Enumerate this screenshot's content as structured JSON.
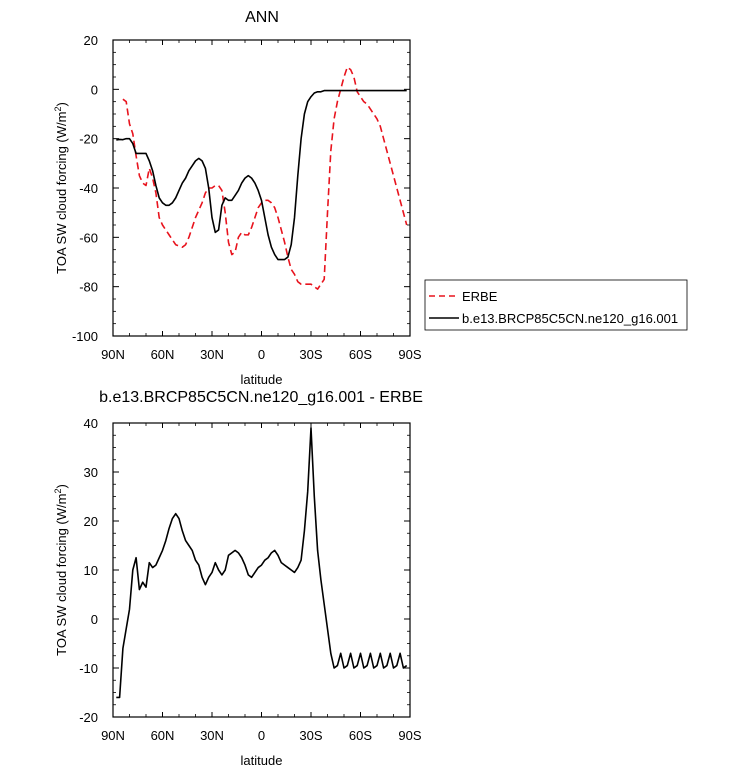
{
  "figure": {
    "background": "#ffffff"
  },
  "chart_data": [
    {
      "type": "line",
      "title": "ANN",
      "xlabel": "latitude",
      "ylabel": "TOA SW cloud forcing (W/m²)",
      "ylabel_base": "TOA SW cloud forcing (W/m",
      "ylabel_sup": "2",
      "ylabel_close": ")",
      "xlim": [
        90,
        -90
      ],
      "ylim": [
        -100,
        20
      ],
      "xticks": [
        {
          "value": 90,
          "label": "90N"
        },
        {
          "value": 60,
          "label": "60N"
        },
        {
          "value": 30,
          "label": "30N"
        },
        {
          "value": 0,
          "label": "0"
        },
        {
          "value": -30,
          "label": "30S"
        },
        {
          "value": -60,
          "label": "60S"
        },
        {
          "value": -90,
          "label": "90S"
        }
      ],
      "yticks": [
        -100,
        -80,
        -60,
        -40,
        -20,
        0,
        20
      ],
      "grid": false,
      "legend": "right",
      "series": [
        {
          "name": "ERBE",
          "color": "#e8131d",
          "dash": "dashed",
          "x": [
            84,
            82,
            80,
            78,
            76,
            74,
            72,
            70,
            68,
            66,
            64,
            62,
            60,
            58,
            56,
            54,
            52,
            50,
            48,
            46,
            44,
            42,
            40,
            38,
            36,
            34,
            32,
            30,
            28,
            26,
            24,
            22,
            20,
            18,
            16,
            14,
            12,
            10,
            8,
            6,
            4,
            2,
            0,
            -2,
            -4,
            -6,
            -8,
            -10,
            -12,
            -14,
            -16,
            -18,
            -20,
            -22,
            -24,
            -26,
            -28,
            -30,
            -32,
            -34,
            -36,
            -38,
            -40,
            -42,
            -44,
            -46,
            -48,
            -50,
            -52,
            -54,
            -56,
            -58,
            -60,
            -62,
            -64,
            -66,
            -68,
            -70,
            -72,
            -74,
            -76,
            -78,
            -80,
            -82,
            -84,
            -86,
            -88
          ],
          "y": [
            -4,
            -5,
            -14,
            -18,
            -27,
            -35,
            -38,
            -39,
            -32,
            -36,
            -42,
            -52,
            -55,
            -57,
            -59,
            -61,
            -63,
            -63.5,
            -64,
            -63,
            -60,
            -56,
            -52,
            -49,
            -46,
            -42,
            -40,
            -40,
            -39,
            -39,
            -41,
            -50,
            -62,
            -67,
            -66,
            -60,
            -58,
            -59,
            -59,
            -56,
            -52,
            -48,
            -46,
            -45,
            -45,
            -46,
            -48,
            -52,
            -57,
            -62,
            -68,
            -73,
            -75,
            -78,
            -79,
            -79,
            -79,
            -79,
            -80,
            -81,
            -79,
            -77,
            -50,
            -25,
            -12,
            -5,
            0,
            5,
            9,
            8,
            5,
            -1,
            -3,
            -5,
            -6,
            -8,
            -10,
            -12,
            -15,
            -20,
            -25,
            -30,
            -35,
            -40,
            -45,
            -50,
            -55
          ]
        },
        {
          "name": "b.e13.BRCP85C5CN.ne120_g16.001",
          "color": "#000000",
          "dash": "solid",
          "x": [
            88,
            86,
            84,
            82,
            80,
            78,
            76,
            74,
            72,
            70,
            68,
            66,
            64,
            62,
            60,
            58,
            56,
            54,
            52,
            50,
            48,
            46,
            44,
            42,
            40,
            38,
            36,
            34,
            32,
            30,
            28,
            26,
            24,
            22,
            20,
            18,
            16,
            14,
            12,
            10,
            8,
            6,
            4,
            2,
            0,
            -2,
            -4,
            -6,
            -8,
            -10,
            -12,
            -14,
            -16,
            -18,
            -20,
            -22,
            -24,
            -26,
            -28,
            -30,
            -32,
            -34,
            -36,
            -38,
            -40,
            -42,
            -44,
            -46,
            -48,
            -50,
            -52,
            -54,
            -56,
            -58,
            -60,
            -62,
            -64,
            -66,
            -68,
            -70,
            -72,
            -74,
            -76,
            -78,
            -80,
            -82,
            -84,
            -86,
            -88
          ],
          "y": [
            -20.5,
            -20.3,
            -20.4,
            -20,
            -20,
            -22,
            -26,
            -26,
            -26,
            -26,
            -29,
            -33,
            -39,
            -44,
            -46,
            -47,
            -47,
            -46,
            -44,
            -41,
            -38,
            -36,
            -33,
            -31,
            -29,
            -28,
            -29,
            -32,
            -40,
            -52,
            -58,
            -57,
            -47,
            -44,
            -45,
            -45,
            -43,
            -41,
            -38,
            -36,
            -35,
            -36,
            -38,
            -41,
            -45,
            -52,
            -59,
            -64,
            -67,
            -69,
            -69,
            -69,
            -68,
            -63,
            -52,
            -35,
            -20,
            -10,
            -5,
            -3,
            -1.5,
            -1,
            -1,
            -0.5,
            -0.5,
            -0.5,
            -0.5,
            -0.5,
            -0.5,
            -0.5,
            -0.5,
            -0.5,
            -0.5,
            -0.5,
            -0.5,
            -0.5,
            -0.5,
            -0.5,
            -0.5,
            -0.5,
            -0.5,
            -0.5,
            -0.5,
            -0.5,
            -0.5,
            -0.5,
            -0.5,
            -0.5,
            -0.5
          ]
        }
      ]
    },
    {
      "type": "line",
      "title": "b.e13.BRCP85C5CN.ne120_g16.001 - ERBE",
      "xlabel": "latitude",
      "ylabel": "TOA SW cloud forcing (W/m²)",
      "ylabel_base": "TOA SW cloud forcing (W/m",
      "ylabel_sup": "2",
      "ylabel_close": ")",
      "xlim": [
        90,
        -90
      ],
      "ylim": [
        -20,
        40
      ],
      "xticks": [
        {
          "value": 90,
          "label": "90N"
        },
        {
          "value": 60,
          "label": "60N"
        },
        {
          "value": 30,
          "label": "30N"
        },
        {
          "value": 0,
          "label": "0"
        },
        {
          "value": -30,
          "label": "30S"
        },
        {
          "value": -60,
          "label": "60S"
        },
        {
          "value": -90,
          "label": "90S"
        }
      ],
      "yticks": [
        -20,
        -10,
        0,
        10,
        20,
        30,
        40
      ],
      "grid": false,
      "series": [
        {
          "color": "#000000",
          "dash": "solid",
          "x": [
            88,
            86,
            84,
            82,
            80,
            78,
            76,
            74,
            72,
            70,
            68,
            66,
            64,
            62,
            60,
            58,
            56,
            54,
            52,
            50,
            48,
            46,
            44,
            42,
            40,
            38,
            36,
            34,
            32,
            30,
            28,
            26,
            24,
            22,
            20,
            18,
            16,
            14,
            12,
            10,
            8,
            6,
            4,
            2,
            0,
            -2,
            -4,
            -6,
            -8,
            -10,
            -12,
            -14,
            -16,
            -18,
            -20,
            -22,
            -24,
            -26,
            -28,
            -30,
            -32,
            -34,
            -36,
            -38,
            -40,
            -42,
            -44,
            -46,
            -48,
            -50,
            -52,
            -54,
            -56,
            -58,
            -60,
            -62,
            -64,
            -66,
            -68,
            -70,
            -72,
            -74,
            -76,
            -78,
            -80,
            -82,
            -84,
            -86,
            -88
          ],
          "y": [
            -16,
            -16,
            -6,
            -2,
            2,
            10,
            12.5,
            6,
            7.5,
            6.5,
            11.5,
            10.5,
            11,
            12.5,
            14,
            16,
            18.5,
            20.5,
            21.5,
            20.5,
            18,
            16,
            15,
            14,
            12,
            11,
            8.5,
            7,
            8.5,
            9.5,
            11.5,
            10,
            9,
            10,
            13,
            13.5,
            14,
            13.5,
            12.5,
            11,
            9,
            8.5,
            9.5,
            10.5,
            11,
            12,
            12.5,
            13.5,
            14,
            13,
            11.5,
            11,
            10.5,
            10,
            9.5,
            10.5,
            12,
            18,
            26,
            39,
            25,
            14,
            8,
            3,
            -2,
            -7,
            -10,
            -9.5,
            -7,
            -10,
            -9.5,
            -7,
            -10,
            -9.5,
            -7,
            -10,
            -9.5,
            -7,
            -10,
            -9.5,
            -7,
            -10,
            -9.5,
            -7,
            -10,
            -9.5,
            -7,
            -10,
            -9.5
          ]
        }
      ]
    }
  ]
}
